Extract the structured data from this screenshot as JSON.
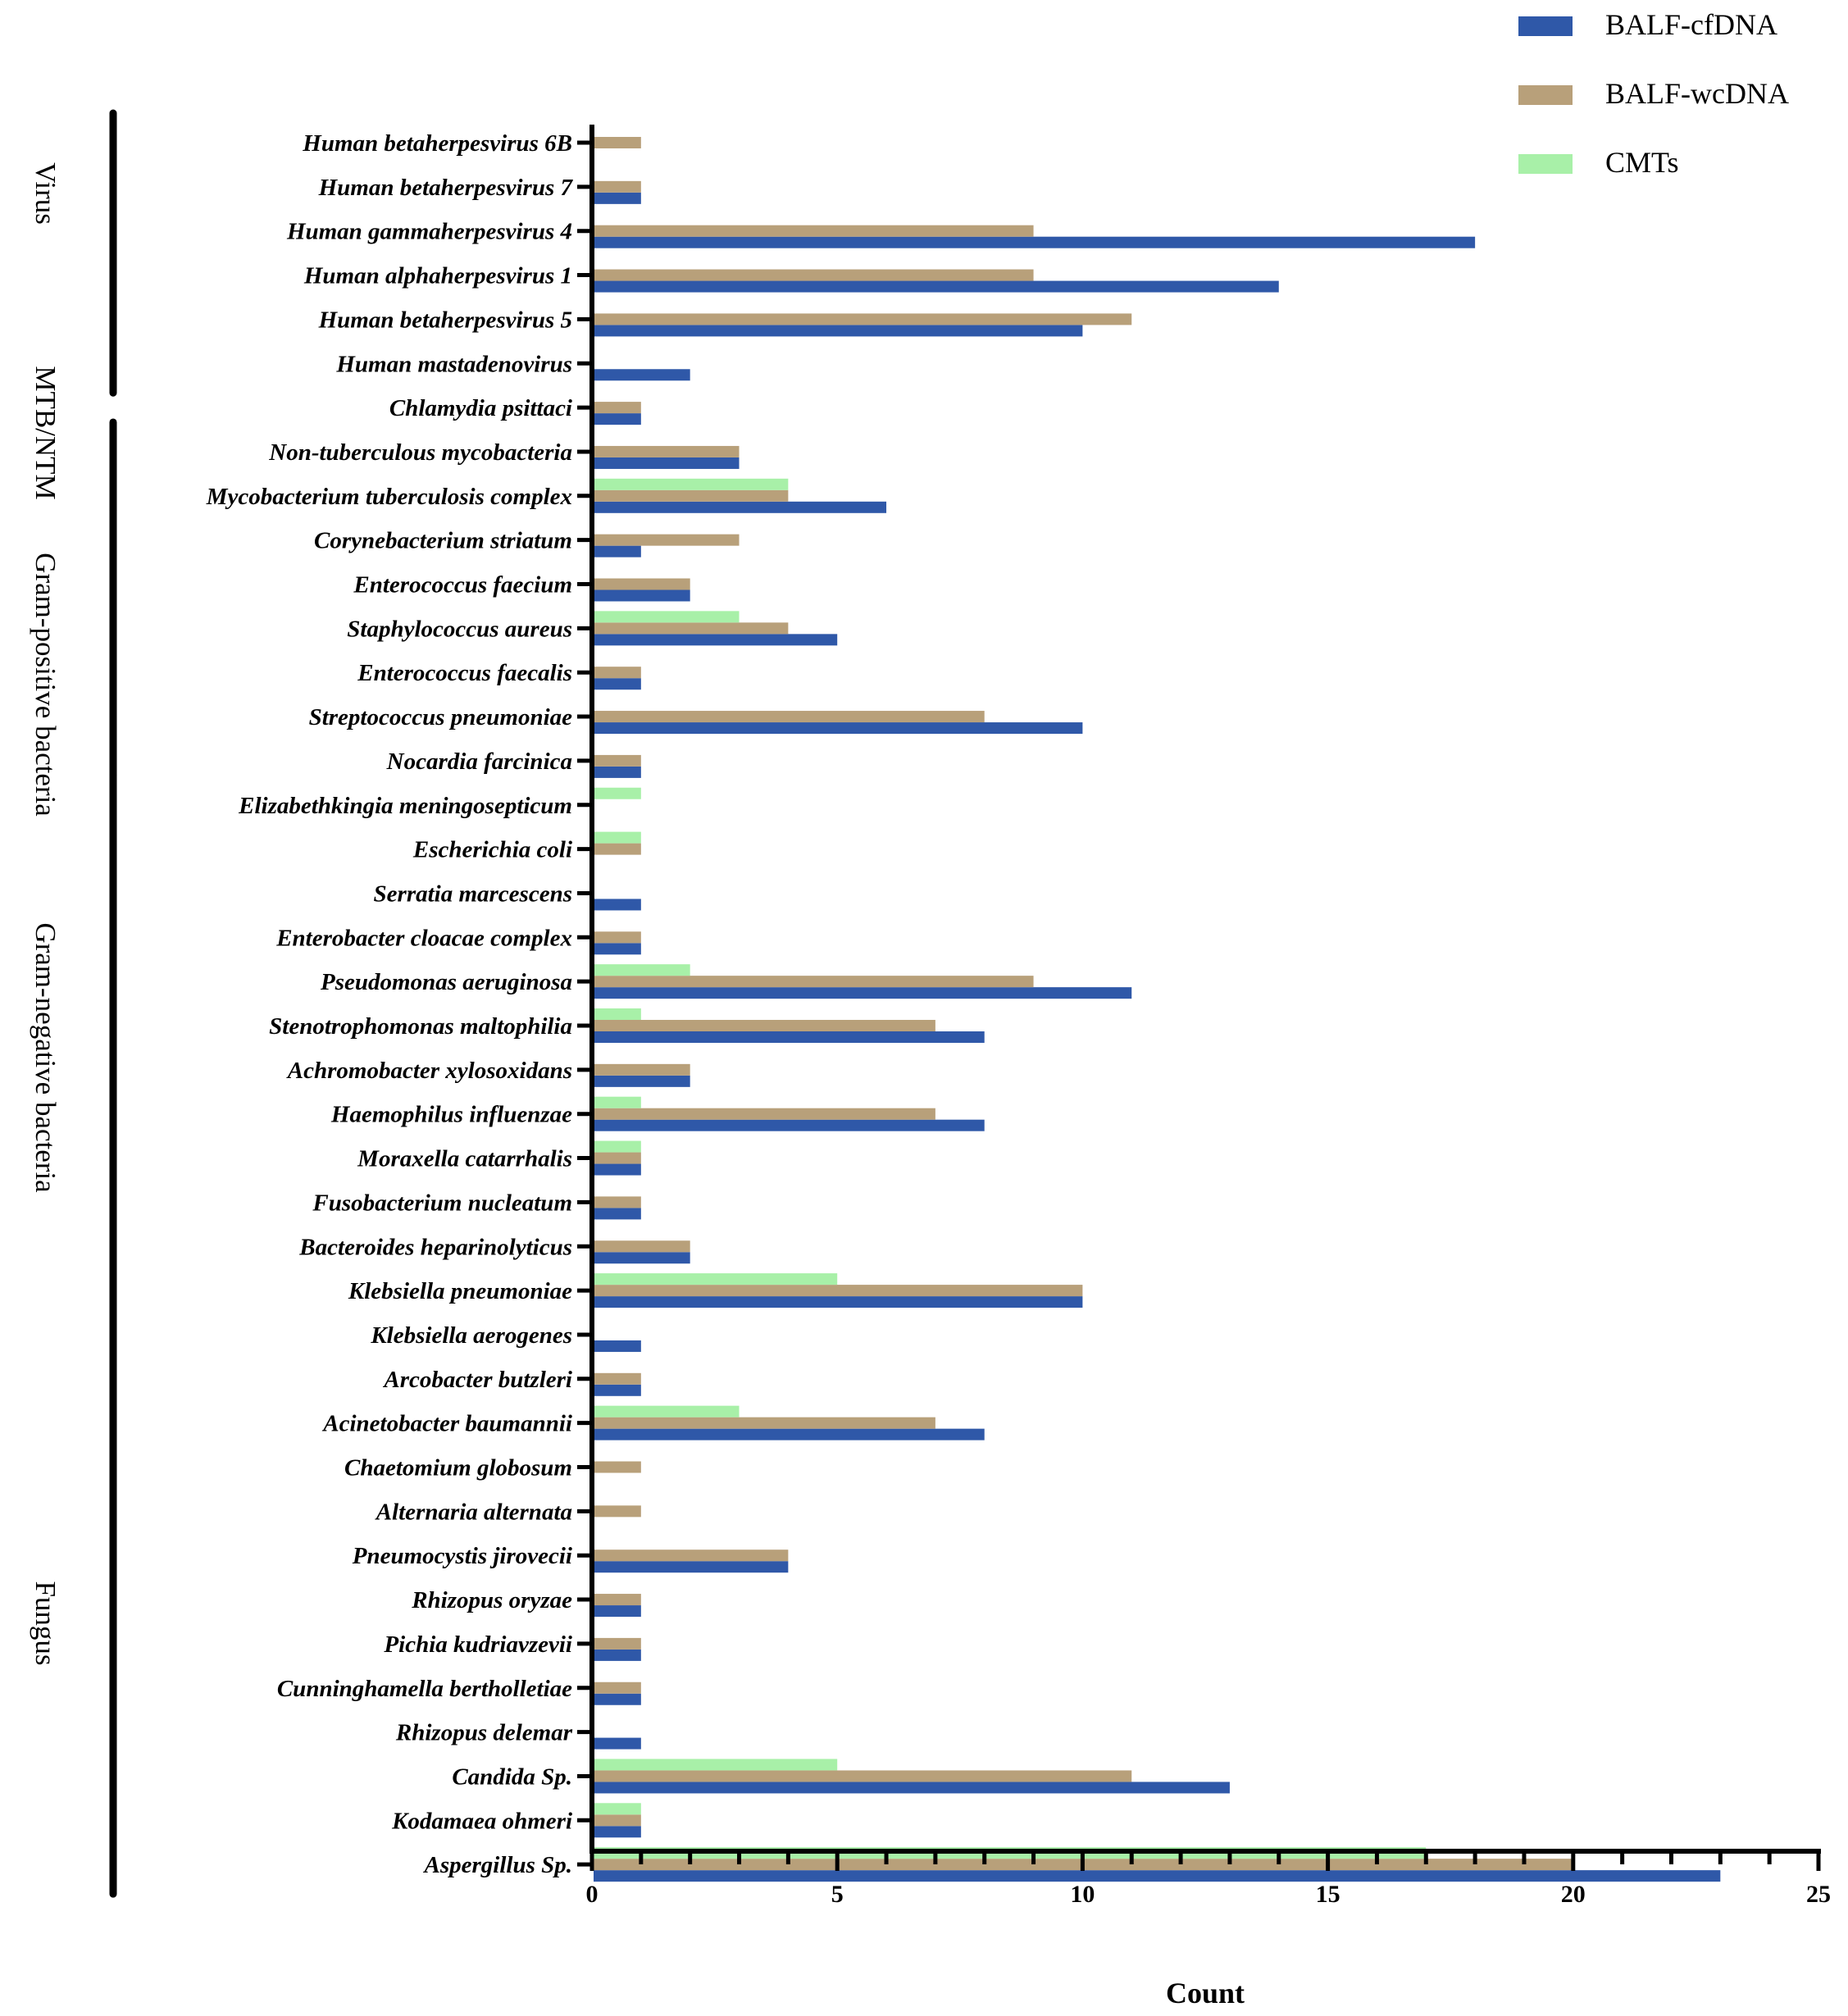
{
  "chart_data": {
    "type": "bar",
    "orientation": "horizontal",
    "xlabel": "Count",
    "xlim": [
      0,
      25
    ],
    "xticks": [
      0,
      5,
      10,
      15,
      20,
      25
    ],
    "legend_position": "top-right",
    "categories": [
      "Human betaherpesvirus 6B",
      "Human betaherpesvirus 7",
      "Human gammaherpesvirus 4",
      "Human alphaherpesvirus 1",
      "Human betaherpesvirus 5",
      "Human mastadenovirus",
      "Chlamydia psittaci",
      "Non-tuberculous mycobacteria",
      "Mycobacterium tuberculosis complex",
      "Corynebacterium striatum",
      "Enterococcus faecium",
      "Staphylococcus aureus",
      "Enterococcus faecalis",
      "Streptococcus pneumoniae",
      "Nocardia farcinica",
      "Elizabethkingia meningosepticum",
      "Escherichia coli",
      "Serratia marcescens",
      "Enterobacter cloacae complex",
      "Pseudomonas aeruginosa",
      "Stenotrophomonas maltophilia",
      "Achromobacter xylosoxidans",
      "Haemophilus influenzae",
      "Moraxella catarrhalis",
      "Fusobacterium nucleatum",
      "Bacteroides heparinolyticus",
      "Klebsiella pneumoniae",
      "Klebsiella aerogenes",
      "Arcobacter butzleri",
      "Acinetobacter baumannii",
      "Chaetomium globosum",
      "Alternaria alternata",
      "Pneumocystis jirovecii",
      "Rhizopus oryzae",
      "Pichia kudriavzevii",
      "Cunninghamella bertholletiae",
      "Rhizopus delemar",
      "Candida Sp.",
      "Kodamaea ohmeri",
      "Aspergillus Sp."
    ],
    "series": [
      {
        "name": "BALF-cfDNA",
        "color": "#2f58a8",
        "values": [
          0,
          1,
          18,
          14,
          10,
          2,
          1,
          3,
          6,
          1,
          2,
          5,
          1,
          10,
          1,
          0,
          0,
          1,
          1,
          11,
          8,
          2,
          8,
          1,
          1,
          2,
          10,
          1,
          1,
          8,
          0,
          0,
          4,
          1,
          1,
          1,
          1,
          13,
          1,
          23
        ]
      },
      {
        "name": "BALF-wcDNA",
        "color": "#b8a07a",
        "values": [
          1,
          1,
          9,
          9,
          11,
          0,
          1,
          3,
          4,
          3,
          2,
          4,
          1,
          8,
          1,
          0,
          1,
          0,
          1,
          9,
          7,
          2,
          7,
          1,
          1,
          2,
          10,
          0,
          1,
          7,
          1,
          1,
          4,
          1,
          1,
          1,
          0,
          11,
          1,
          20
        ]
      },
      {
        "name": "CMTs",
        "color": "#a8f0a8",
        "values": [
          0,
          0,
          0,
          0,
          0,
          0,
          0,
          0,
          4,
          0,
          0,
          3,
          0,
          0,
          0,
          1,
          1,
          0,
          0,
          2,
          1,
          0,
          1,
          1,
          0,
          0,
          5,
          0,
          0,
          3,
          0,
          0,
          0,
          0,
          0,
          0,
          0,
          5,
          1,
          17
        ]
      }
    ],
    "groups": [
      {
        "name": "Virus",
        "first": 0,
        "last": 5
      },
      {
        "name": "MTB/NTM",
        "first": 7,
        "last": 8
      },
      {
        "name": "Gram-positive bacteria",
        "first": 9,
        "last": 14
      },
      {
        "name": "Gram-negative bacteria",
        "first": 15,
        "last": 29
      },
      {
        "name": "Fungus",
        "first": 30,
        "last": 39
      }
    ]
  }
}
